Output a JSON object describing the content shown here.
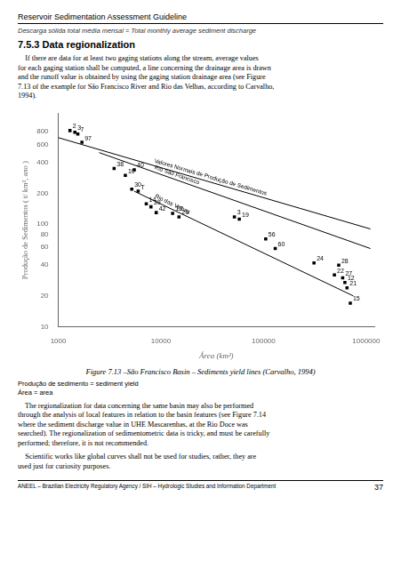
{
  "page": {
    "title": "Reservoir Sedimentation Assessment Guideline",
    "subtitle": "Descarga sólida total média mensal = Total monthly average sediment discharge",
    "heading": "7.5.3 Data regionalization",
    "paragraph1": [
      "    If there are data for at least two gaging stations along the stream, average values",
      "for each gaging station shall be computed, a line concerning the drainage area is drawn",
      "and the runoff value is obtained by using the gaging station drainage area (see Figure",
      "7.13 of the example for São Francisco River and Rio das Velhas, according to Carvalho,",
      "1994)."
    ],
    "caption": "Figure 7.13 –São Francisco Basin – Sediments yield lines (Carvalho, 1994)",
    "notes": [
      "Produção de sedimento = sediment yield",
      "Área = area"
    ],
    "paragraph2": [
      "    The regionalization for data concerning the same basin may also be performed",
      "through the analysis of local features in relation to the basin features (see Figure 7.14",
      "where the sediment discharge value in UHE Mascarenhas, at the Rio Doce was",
      "searched). The regionalization of sedimentometric data is tricky, and must be carefully",
      "performed; therefore, it is not recommended."
    ],
    "paragraph3": [
      "    Scientific works like global curves shall not be used for studies, rather, they are",
      "used just for curiosity purposes."
    ],
    "footer": "ANEEL – Brazilian Electricity Regulatory Agency / SIH – Hydrologic Studies and Information Department",
    "page_number": "37"
  },
  "chart_data": {
    "type": "scatter",
    "xlabel": "Área (km²)",
    "ylabel": "Produção de Sedimentos ( t/ km², ano )",
    "log": true,
    "xlim": [
      1000,
      1200000
    ],
    "ylim": [
      10,
      1200
    ],
    "xticks": [
      1000,
      10000,
      100000,
      1000000
    ],
    "yticks": [
      10,
      20,
      40,
      60,
      80,
      100,
      200,
      400,
      600,
      800
    ],
    "grid": false,
    "series": [
      {
        "type": "scatter",
        "color": "black",
        "marker": "square",
        "x": [
          1300,
          1450,
          1550,
          1700,
          5500,
          3500,
          4500,
          5200,
          6000,
          7200,
          8000,
          9000,
          13000,
          15000,
          52000,
          58000,
          105000,
          130000,
          310000,
          490000,
          540000,
          590000,
          620000,
          650000,
          700000
        ],
        "values": [
          820,
          790,
          760,
          630,
          340,
          350,
          300,
          220,
          210,
          158,
          148,
          130,
          128,
          118,
          118,
          112,
          72,
          58,
          42,
          32,
          40,
          30,
          27,
          24,
          17
        ],
        "point_labels": [
          "2",
          "3",
          "7",
          "97",
          "40",
          "38",
          "10",
          "30",
          "T",
          "14",
          "39",
          "42",
          "13",
          "29",
          "3",
          "19",
          "56",
          "60",
          "24",
          "22",
          "28",
          "27",
          "12",
          "21",
          "15"
        ]
      },
      {
        "type": "line",
        "color": "black",
        "line_style": "solid",
        "label": "Valores Normais de Produção de Sedimentos",
        "x": [
          1000,
          1100000
        ],
        "values": [
          700,
          90
        ]
      },
      {
        "type": "line",
        "color": "black",
        "line_style": "solid",
        "label": "Rio São Francisco",
        "x": [
          2500,
          1100000
        ],
        "values": [
          500,
          58
        ]
      },
      {
        "type": "line",
        "color": "black",
        "line_style": "solid",
        "label": "Rio das Velhas",
        "x": [
          5500,
          750000
        ],
        "values": [
          210,
          20
        ]
      }
    ]
  }
}
